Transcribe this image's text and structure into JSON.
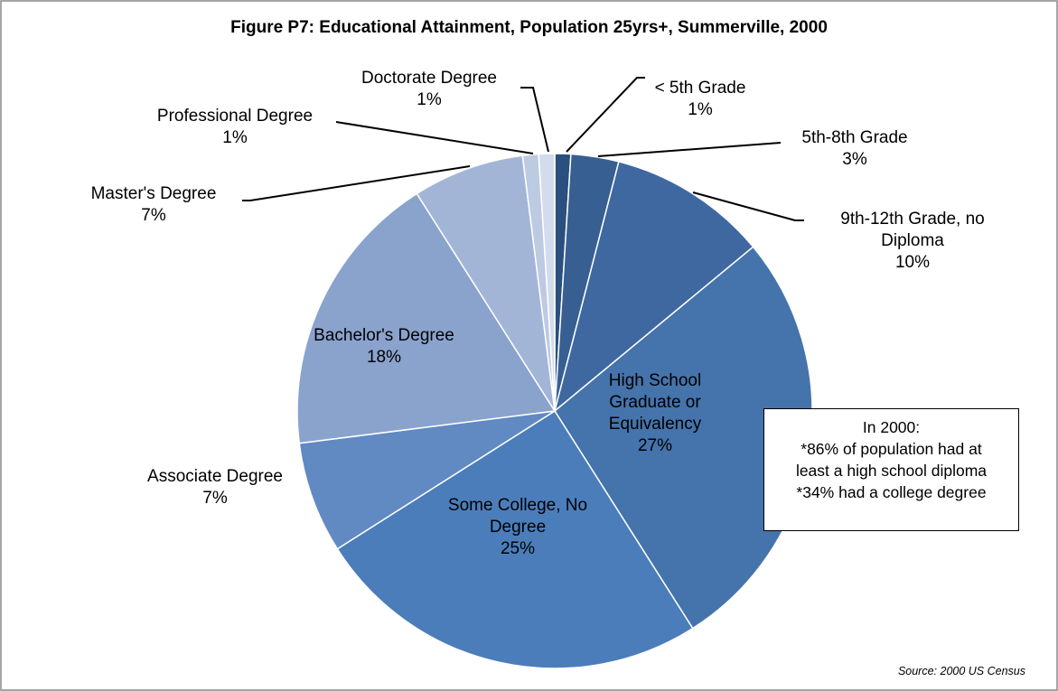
{
  "chart_data": {
    "type": "pie",
    "title": "Figure P7: Educational Attainment, Population 25yrs+,  Summerville, 2000",
    "categories": [
      "< 5th Grade",
      "5th-8th Grade",
      "9th-12th Grade, no Diploma",
      "High School Graduate or Equivalency",
      "Some College, No Degree",
      "Associate Degree",
      "Bachelor's Degree",
      "Master's Degree",
      "Professional Degree",
      "Doctorate Degree"
    ],
    "values": [
      1,
      3,
      10,
      27,
      25,
      7,
      18,
      7,
      1,
      1
    ],
    "value_labels": [
      "1%",
      "3%",
      "10%",
      "27%",
      "25%",
      "7%",
      "18%",
      "7%",
      "1%",
      "1%"
    ],
    "colors": [
      "#2b4f7e",
      "#385f92",
      "#3f68a1",
      "#4573ab",
      "#4b7dbb",
      "#618ac3",
      "#8aa3cd",
      "#a3b5d7",
      "#bccae2",
      "#d3dcec"
    ],
    "annotation": [
      "In 2000:",
      "*86% of population had at",
      "least a high school diploma",
      "*34% had a college degree"
    ],
    "source": "Source: 2000 US Census"
  }
}
